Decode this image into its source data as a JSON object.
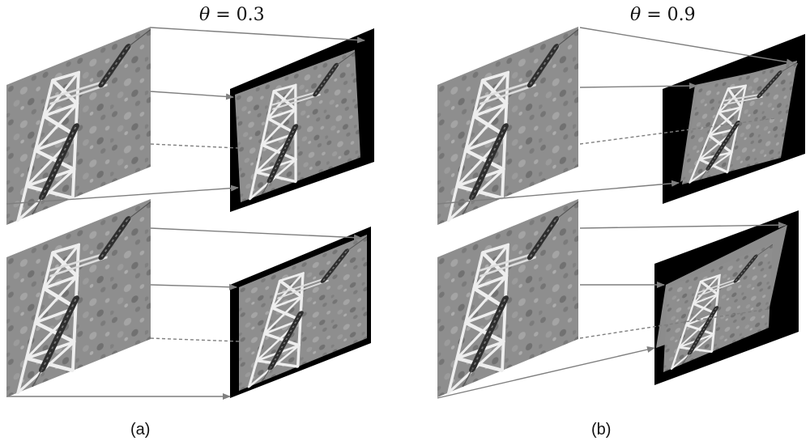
{
  "panels": [
    {
      "id": "a",
      "label": "(a)",
      "theta_symbol": "θ",
      "theta_value": "= 0.3"
    },
    {
      "id": "b",
      "label": "(b)",
      "theta_symbol": "θ",
      "theta_value": "= 0.9"
    }
  ],
  "colors": {
    "background": "#ffffff",
    "arrow": "#7f7f7f",
    "warp_frame": "#000000",
    "photo_base": "#8c8c8c"
  },
  "icons": [
    "transmission-tower-photo",
    "arrow-icon"
  ]
}
